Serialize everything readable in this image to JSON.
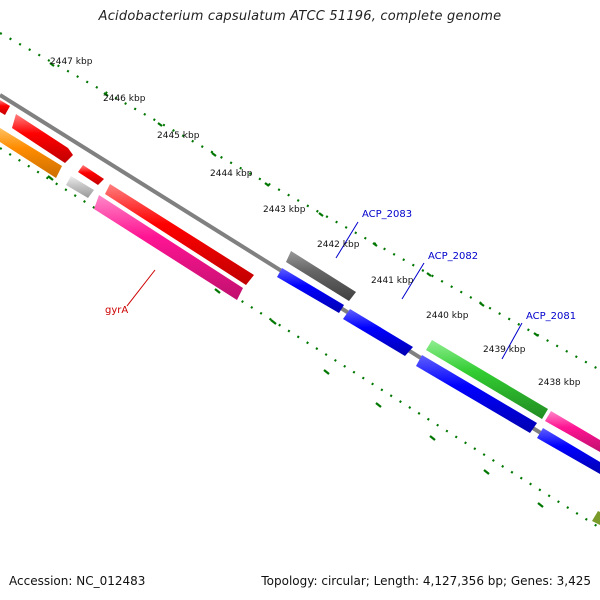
{
  "title": "Acidobacterium capsulatum ATCC 51196, complete genome",
  "footer": {
    "accession": "Accession: NC_012483",
    "topology": "Topology: circular; Length: 4,127,356 bp; Genes: 3,425"
  },
  "scale_labels": [
    "2447 kbp",
    "2446 kbp",
    "2445 kbp",
    "2444 kbp",
    "2443 kbp",
    "2442 kbp",
    "2441 kbp",
    "2440 kbp",
    "2439 kbp",
    "2438 kbp"
  ],
  "gene_labels": [
    {
      "text": "ACP_2083",
      "color": "#0000cc"
    },
    {
      "text": "ACP_2082",
      "color": "#0000cc"
    },
    {
      "text": "ACP_2081",
      "color": "#0000cc"
    },
    {
      "text": "gyrA",
      "color": "#cc0000"
    }
  ],
  "colors": {
    "red": "#ff0000",
    "orange": "#ff8c00",
    "gray": "#c0c0c0",
    "pink": "#ff1493",
    "darkgray": "#606060",
    "blue": "#0000ff",
    "green": "#32cd32",
    "olive": "#6b8e23",
    "backbone": "#808080",
    "ticks": "#007700"
  }
}
